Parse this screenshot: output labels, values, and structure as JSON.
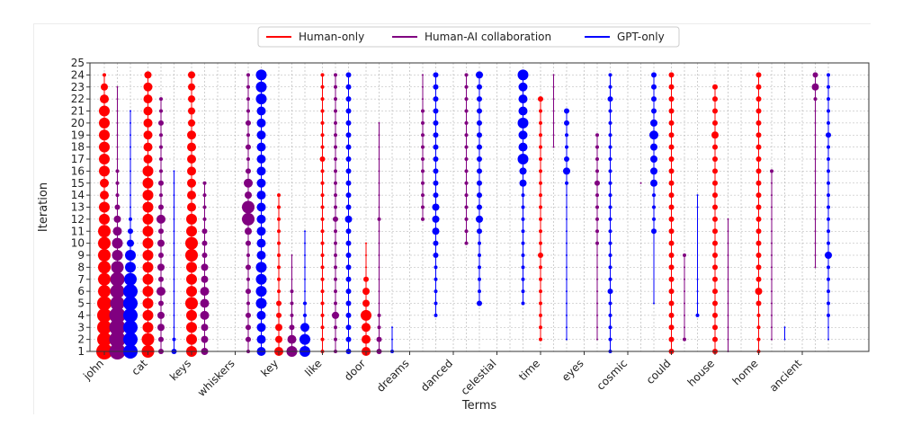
{
  "chart_data": {
    "type": "scatter",
    "xlabel": "Terms",
    "ylabel": "Iteration",
    "ylim": [
      1,
      25
    ],
    "yticks": [
      1,
      2,
      3,
      4,
      5,
      6,
      7,
      8,
      9,
      10,
      11,
      12,
      13,
      14,
      15,
      16,
      17,
      18,
      19,
      20,
      21,
      22,
      23,
      24,
      25
    ],
    "terms": [
      "john",
      "cat",
      "keys",
      "whiskers",
      "key",
      "like",
      "door",
      "dreams",
      "danced",
      "celestial",
      "time",
      "eyes",
      "cosmic",
      "could",
      "house",
      "home",
      "ancient"
    ],
    "grid": true,
    "legend_position": "top-center",
    "series": [
      {
        "name": "Human-only",
        "color": "#ff0000"
      },
      {
        "name": "Human-AI collaboration",
        "color": "#800080"
      },
      {
        "name": "GPT-only",
        "color": "#0000ff"
      }
    ],
    "points": {
      "john": [
        {
          "series": 0,
          "sizes": {
            "1": 9,
            "2": 8,
            "3": 8,
            "4": 8,
            "5": 8,
            "6": 7,
            "7": 7,
            "8": 7,
            "9": 7,
            "10": 7,
            "11": 7,
            "12": 6,
            "13": 6,
            "14": 5,
            "15": 5,
            "16": 6,
            "17": 6,
            "18": 6,
            "19": 6,
            "20": 6,
            "21": 6,
            "22": 5,
            "23": 4,
            "24": 2
          }
        },
        {
          "series": 1,
          "sizes": {
            "1": 9,
            "2": 9,
            "3": 9,
            "4": 9,
            "5": 8,
            "6": 8,
            "7": 8,
            "8": 7,
            "9": 6,
            "10": 6,
            "11": 5,
            "12": 4,
            "13": 3,
            "14": 2,
            "15": 2,
            "16": 2,
            "17": 1,
            "18": 1,
            "19": 1,
            "20": 1,
            "21": 1,
            "22": 1,
            "23": 1
          }
        },
        {
          "series": 2,
          "sizes": {
            "1": 8,
            "2": 8,
            "3": 8,
            "4": 8,
            "5": 8,
            "6": 8,
            "7": 7,
            "8": 6,
            "9": 6,
            "10": 4,
            "11": 3,
            "12": 2,
            "13": 1,
            "14": 1,
            "15": 1,
            "16": 1,
            "17": 1,
            "18": 1,
            "19": 1,
            "20": 1,
            "21": 1
          }
        }
      ],
      "cat": [
        {
          "series": 0,
          "sizes": {
            "1": 7,
            "2": 7,
            "3": 6,
            "4": 6,
            "5": 6,
            "6": 6,
            "7": 6,
            "8": 6,
            "9": 6,
            "10": 6,
            "11": 6,
            "12": 6,
            "13": 6,
            "14": 6,
            "15": 6,
            "16": 6,
            "17": 5,
            "18": 5,
            "19": 5,
            "20": 5,
            "21": 5,
            "22": 5,
            "23": 5,
            "24": 4
          }
        },
        {
          "series": 1,
          "sizes": {
            "1": 3,
            "2": 3,
            "3": 4,
            "4": 4,
            "5": 3,
            "6": 5,
            "7": 3,
            "8": 4,
            "9": 3,
            "10": 4,
            "11": 3,
            "12": 5,
            "13": 3,
            "14": 2,
            "15": 3,
            "16": 2,
            "17": 2,
            "18": 2,
            "19": 2,
            "20": 3,
            "21": 2,
            "22": 2
          }
        },
        {
          "series": 2,
          "sizes": {
            "1": 3,
            "2": 2,
            "3": 1,
            "4": 1,
            "5": 1,
            "6": 1,
            "7": 1,
            "8": 1,
            "9": 1,
            "10": 1,
            "11": 1,
            "12": 1,
            "13": 1,
            "14": 1,
            "15": 1,
            "16": 1
          }
        }
      ],
      "keys": [
        {
          "series": 0,
          "sizes": {
            "1": 6,
            "2": 6,
            "3": 6,
            "4": 6,
            "5": 7,
            "6": 6,
            "7": 6,
            "8": 6,
            "9": 7,
            "10": 7,
            "11": 6,
            "12": 6,
            "13": 5,
            "14": 5,
            "15": 5,
            "16": 5,
            "17": 5,
            "18": 5,
            "19": 5,
            "20": 4,
            "21": 4,
            "22": 4,
            "23": 4,
            "24": 4
          }
        },
        {
          "series": 1,
          "sizes": {
            "1": 4,
            "2": 4,
            "3": 4,
            "4": 5,
            "5": 5,
            "6": 5,
            "7": 4,
            "8": 4,
            "9": 3,
            "10": 3,
            "11": 3,
            "12": 2,
            "13": 2,
            "14": 2,
            "15": 2
          }
        },
        {
          "series": 2,
          "sizes": {}
        }
      ],
      "whiskers": [
        {
          "series": 0,
          "sizes": {}
        },
        {
          "series": 1,
          "sizes": {
            "1": 2,
            "2": 3,
            "3": 3,
            "4": 3,
            "5": 2,
            "6": 3,
            "7": 2,
            "8": 3,
            "9": 2,
            "10": 3,
            "11": 4,
            "12": 7,
            "13": 7,
            "14": 4,
            "15": 5,
            "16": 3,
            "17": 2,
            "18": 3,
            "19": 2,
            "20": 3,
            "21": 2,
            "22": 2,
            "23": 2,
            "24": 2
          }
        },
        {
          "series": 2,
          "sizes": {
            "1": 5,
            "2": 5,
            "3": 5,
            "4": 5,
            "5": 6,
            "6": 6,
            "7": 6,
            "8": 6,
            "9": 5,
            "10": 5,
            "11": 5,
            "12": 5,
            "13": 5,
            "14": 5,
            "15": 5,
            "16": 5,
            "17": 5,
            "18": 5,
            "19": 5,
            "20": 5,
            "21": 5,
            "22": 6,
            "23": 6,
            "24": 6
          }
        }
      ],
      "key": [
        {
          "series": 0,
          "sizes": {
            "1": 5,
            "2": 4,
            "3": 4,
            "4": 3,
            "5": 3,
            "6": 2,
            "7": 2,
            "8": 2,
            "9": 2,
            "10": 2,
            "11": 2,
            "12": 2,
            "13": 2,
            "14": 2
          }
        },
        {
          "series": 1,
          "sizes": {
            "1": 6,
            "2": 5,
            "3": 3,
            "4": 2,
            "5": 2,
            "6": 2,
            "7": 1,
            "8": 1,
            "9": 1
          }
        },
        {
          "series": 2,
          "sizes": {
            "1": 6,
            "2": 6,
            "3": 5,
            "4": 2,
            "5": 2,
            "6": 1,
            "7": 1,
            "8": 1,
            "9": 1,
            "10": 1,
            "11": 1
          }
        }
      ],
      "like": [
        {
          "series": 0,
          "sizes": {
            "1": 2,
            "2": 2,
            "3": 2,
            "4": 2,
            "5": 2,
            "6": 2,
            "7": 2,
            "8": 2,
            "9": 2,
            "10": 2,
            "11": 2,
            "12": 2,
            "13": 2,
            "14": 2,
            "15": 2,
            "16": 2,
            "17": 3,
            "18": 2,
            "19": 2,
            "20": 2,
            "21": 2,
            "22": 2,
            "23": 2,
            "24": 2
          }
        },
        {
          "series": 1,
          "sizes": {
            "1": 2,
            "2": 2,
            "3": 2,
            "4": 4,
            "5": 2,
            "6": 2,
            "7": 2,
            "8": 2,
            "9": 2,
            "10": 2,
            "11": 2,
            "12": 3,
            "13": 2,
            "14": 2,
            "15": 2,
            "16": 2,
            "17": 2,
            "18": 2,
            "19": 2,
            "20": 2,
            "21": 2,
            "22": 2,
            "23": 2,
            "24": 2
          }
        },
        {
          "series": 2,
          "sizes": {
            "1": 3,
            "2": 3,
            "3": 3,
            "4": 3,
            "5": 3,
            "6": 3,
            "7": 3,
            "8": 3,
            "9": 3,
            "10": 3,
            "11": 3,
            "12": 4,
            "13": 3,
            "14": 3,
            "15": 3,
            "16": 3,
            "17": 3,
            "18": 3,
            "19": 3,
            "20": 3,
            "21": 3,
            "22": 3,
            "23": 3,
            "24": 3
          }
        }
      ],
      "door": [
        {
          "series": 0,
          "sizes": {
            "1": 5,
            "2": 5,
            "3": 5,
            "4": 6,
            "5": 4,
            "6": 4,
            "7": 3,
            "8": 1,
            "9": 1,
            "10": 1
          }
        },
        {
          "series": 1,
          "sizes": {
            "1": 3,
            "2": 3,
            "3": 2,
            "4": 2,
            "5": 1,
            "6": 1,
            "7": 1,
            "8": 1,
            "9": 1,
            "10": 1,
            "11": 1,
            "12": 2,
            "13": 1,
            "14": 1,
            "15": 1,
            "16": 1,
            "17": 1,
            "18": 1,
            "19": 1,
            "20": 1
          }
        },
        {
          "series": 2,
          "sizes": {
            "1": 2,
            "2": 1,
            "3": 1
          }
        }
      ],
      "dreams": [
        {
          "series": 0,
          "sizes": {}
        },
        {
          "series": 1,
          "sizes": {
            "12": 2,
            "13": 2,
            "14": 2,
            "15": 2,
            "16": 2,
            "17": 2,
            "18": 2,
            "19": 2,
            "20": 2,
            "21": 2,
            "22": 1,
            "23": 1,
            "24": 1
          }
        },
        {
          "series": 2,
          "sizes": {
            "4": 2,
            "5": 2,
            "6": 2,
            "7": 2,
            "8": 2,
            "9": 3,
            "10": 3,
            "11": 4,
            "12": 4,
            "13": 4,
            "14": 3,
            "15": 3,
            "16": 3,
            "17": 3,
            "18": 3,
            "19": 3,
            "20": 3,
            "21": 3,
            "22": 3,
            "23": 3,
            "24": 3
          }
        }
      ],
      "danced": [
        {
          "series": 0,
          "sizes": {}
        },
        {
          "series": 1,
          "sizes": {
            "10": 2,
            "11": 2,
            "12": 2,
            "13": 2,
            "14": 2,
            "15": 2,
            "16": 2,
            "17": 2,
            "18": 2,
            "19": 2,
            "20": 2,
            "21": 2,
            "22": 2,
            "23": 2,
            "24": 2
          }
        },
        {
          "series": 2,
          "sizes": {
            "5": 3,
            "6": 2,
            "7": 2,
            "8": 2,
            "9": 2,
            "10": 2,
            "11": 3,
            "12": 4,
            "13": 3,
            "14": 3,
            "15": 3,
            "16": 3,
            "17": 3,
            "18": 3,
            "19": 3,
            "20": 3,
            "21": 3,
            "22": 3,
            "23": 3,
            "24": 4
          }
        }
      ],
      "celestial": [
        {
          "series": 0,
          "sizes": {}
        },
        {
          "series": 1,
          "sizes": {}
        },
        {
          "series": 2,
          "sizes": {
            "5": 2,
            "6": 2,
            "7": 2,
            "8": 2,
            "9": 2,
            "10": 2,
            "11": 2,
            "12": 2,
            "13": 2,
            "14": 2,
            "15": 4,
            "16": 4,
            "17": 6,
            "18": 5,
            "19": 5,
            "20": 6,
            "21": 5,
            "22": 5,
            "23": 5,
            "24": 6
          }
        }
      ],
      "time": [
        {
          "series": 0,
          "sizes": {
            "2": 2,
            "3": 2,
            "4": 2,
            "5": 2,
            "6": 2,
            "7": 2,
            "8": 2,
            "9": 3,
            "10": 2,
            "11": 2,
            "12": 2,
            "13": 2,
            "14": 2,
            "15": 2,
            "16": 2,
            "17": 2,
            "18": 2,
            "19": 2,
            "20": 2,
            "21": 2,
            "22": 3
          }
        },
        {
          "series": 1,
          "sizes": {
            "18": 1,
            "19": 1,
            "20": 1,
            "21": 1,
            "22": 1,
            "23": 1,
            "24": 1
          }
        },
        {
          "series": 2,
          "sizes": {
            "2": 1,
            "3": 1,
            "4": 1,
            "5": 1,
            "6": 1,
            "7": 1,
            "8": 1,
            "9": 1,
            "10": 1,
            "11": 1,
            "12": 1,
            "13": 1,
            "14": 1,
            "15": 2,
            "16": 4,
            "17": 3,
            "18": 2,
            "19": 2,
            "20": 3,
            "21": 3
          }
        }
      ],
      "eyes": [
        {
          "series": 0,
          "sizes": {}
        },
        {
          "series": 1,
          "sizes": {
            "2": 1,
            "3": 1,
            "4": 1,
            "5": 1,
            "6": 1,
            "7": 1,
            "8": 1,
            "9": 1,
            "10": 2,
            "11": 2,
            "12": 2,
            "13": 2,
            "14": 2,
            "15": 3,
            "16": 2,
            "17": 2,
            "18": 2,
            "19": 2
          }
        },
        {
          "series": 2,
          "sizes": {
            "1": 2,
            "2": 2,
            "3": 2,
            "4": 2,
            "5": 2,
            "6": 3,
            "7": 2,
            "8": 2,
            "9": 2,
            "10": 2,
            "11": 2,
            "12": 2,
            "13": 2,
            "14": 2,
            "15": 2,
            "16": 2,
            "17": 2,
            "18": 2,
            "19": 2,
            "20": 2,
            "21": 2,
            "22": 3,
            "23": 2,
            "24": 2
          }
        }
      ],
      "cosmic": [
        {
          "series": 0,
          "sizes": {}
        },
        {
          "series": 1,
          "sizes": {
            "15": 1
          }
        },
        {
          "series": 2,
          "sizes": {
            "5": 1,
            "11": 3,
            "12": 2,
            "13": 2,
            "14": 2,
            "15": 4,
            "16": 4,
            "17": 4,
            "18": 4,
            "19": 5,
            "20": 4,
            "21": 3,
            "22": 3,
            "23": 3,
            "24": 3
          }
        }
      ],
      "could": [
        {
          "series": 0,
          "sizes": {
            "1": 3,
            "2": 3,
            "3": 3,
            "4": 3,
            "5": 3,
            "6": 3,
            "7": 3,
            "8": 3,
            "9": 3,
            "10": 3,
            "11": 3,
            "12": 3,
            "13": 3,
            "14": 3,
            "15": 3,
            "16": 3,
            "17": 3,
            "18": 3,
            "19": 3,
            "20": 3,
            "21": 3,
            "22": 3,
            "23": 3,
            "24": 3
          }
        },
        {
          "series": 1,
          "sizes": {
            "2": 2,
            "3": 1,
            "4": 1,
            "5": 1,
            "6": 1,
            "7": 1,
            "8": 1,
            "9": 2
          }
        },
        {
          "series": 2,
          "sizes": {
            "4": 2,
            "5": 1,
            "6": 1,
            "7": 1,
            "13": 1,
            "14": 1
          }
        }
      ],
      "house": [
        {
          "series": 0,
          "sizes": {
            "1": 3,
            "2": 3,
            "3": 3,
            "4": 3,
            "5": 3,
            "6": 3,
            "7": 3,
            "8": 3,
            "9": 3,
            "10": 3,
            "11": 3,
            "12": 3,
            "13": 3,
            "14": 3,
            "15": 3,
            "16": 3,
            "17": 3,
            "18": 3,
            "19": 4,
            "20": 3,
            "21": 3,
            "22": 3,
            "23": 3
          }
        },
        {
          "series": 1,
          "sizes": {
            "1": 1,
            "2": 1,
            "3": 1,
            "4": 1,
            "5": 1,
            "6": 1,
            "7": 1,
            "8": 1,
            "9": 1,
            "10": 1,
            "11": 1,
            "12": 1
          }
        },
        {
          "series": 2,
          "sizes": {}
        }
      ],
      "home": [
        {
          "series": 0,
          "sizes": {
            "1": 2,
            "2": 2,
            "3": 2,
            "4": 2,
            "5": 3,
            "6": 4,
            "7": 3,
            "8": 3,
            "9": 3,
            "10": 3,
            "11": 3,
            "12": 3,
            "13": 3,
            "14": 3,
            "15": 3,
            "16": 3,
            "17": 3,
            "18": 3,
            "19": 3,
            "20": 3,
            "21": 3,
            "22": 3,
            "23": 3,
            "24": 3
          }
        },
        {
          "series": 1,
          "sizes": {
            "2": 1,
            "3": 1,
            "4": 1,
            "5": 1,
            "6": 1,
            "7": 1,
            "8": 1,
            "9": 1,
            "10": 1,
            "11": 1,
            "12": 1,
            "13": 1,
            "14": 1,
            "15": 1,
            "16": 2
          }
        },
        {
          "series": 2,
          "sizes": {
            "2": 1,
            "3": 1
          }
        }
      ],
      "ancient": [
        {
          "series": 0,
          "sizes": {}
        },
        {
          "series": 1,
          "sizes": {
            "8": 1,
            "9": 1,
            "10": 1,
            "11": 1,
            "12": 1,
            "13": 1,
            "14": 1,
            "15": 1,
            "16": 1,
            "17": 1,
            "18": 1,
            "19": 1,
            "20": 1,
            "21": 1,
            "22": 2,
            "23": 4,
            "24": 3
          }
        },
        {
          "series": 2,
          "sizes": {
            "2": 1,
            "3": 1,
            "4": 2,
            "5": 2,
            "6": 2,
            "7": 2,
            "8": 2,
            "9": 4,
            "10": 2,
            "11": 2,
            "12": 2,
            "13": 2,
            "14": 2,
            "15": 2,
            "16": 2,
            "17": 2,
            "18": 2,
            "19": 3,
            "20": 2,
            "21": 2,
            "22": 2,
            "23": 2,
            "24": 2
          }
        }
      ]
    }
  }
}
